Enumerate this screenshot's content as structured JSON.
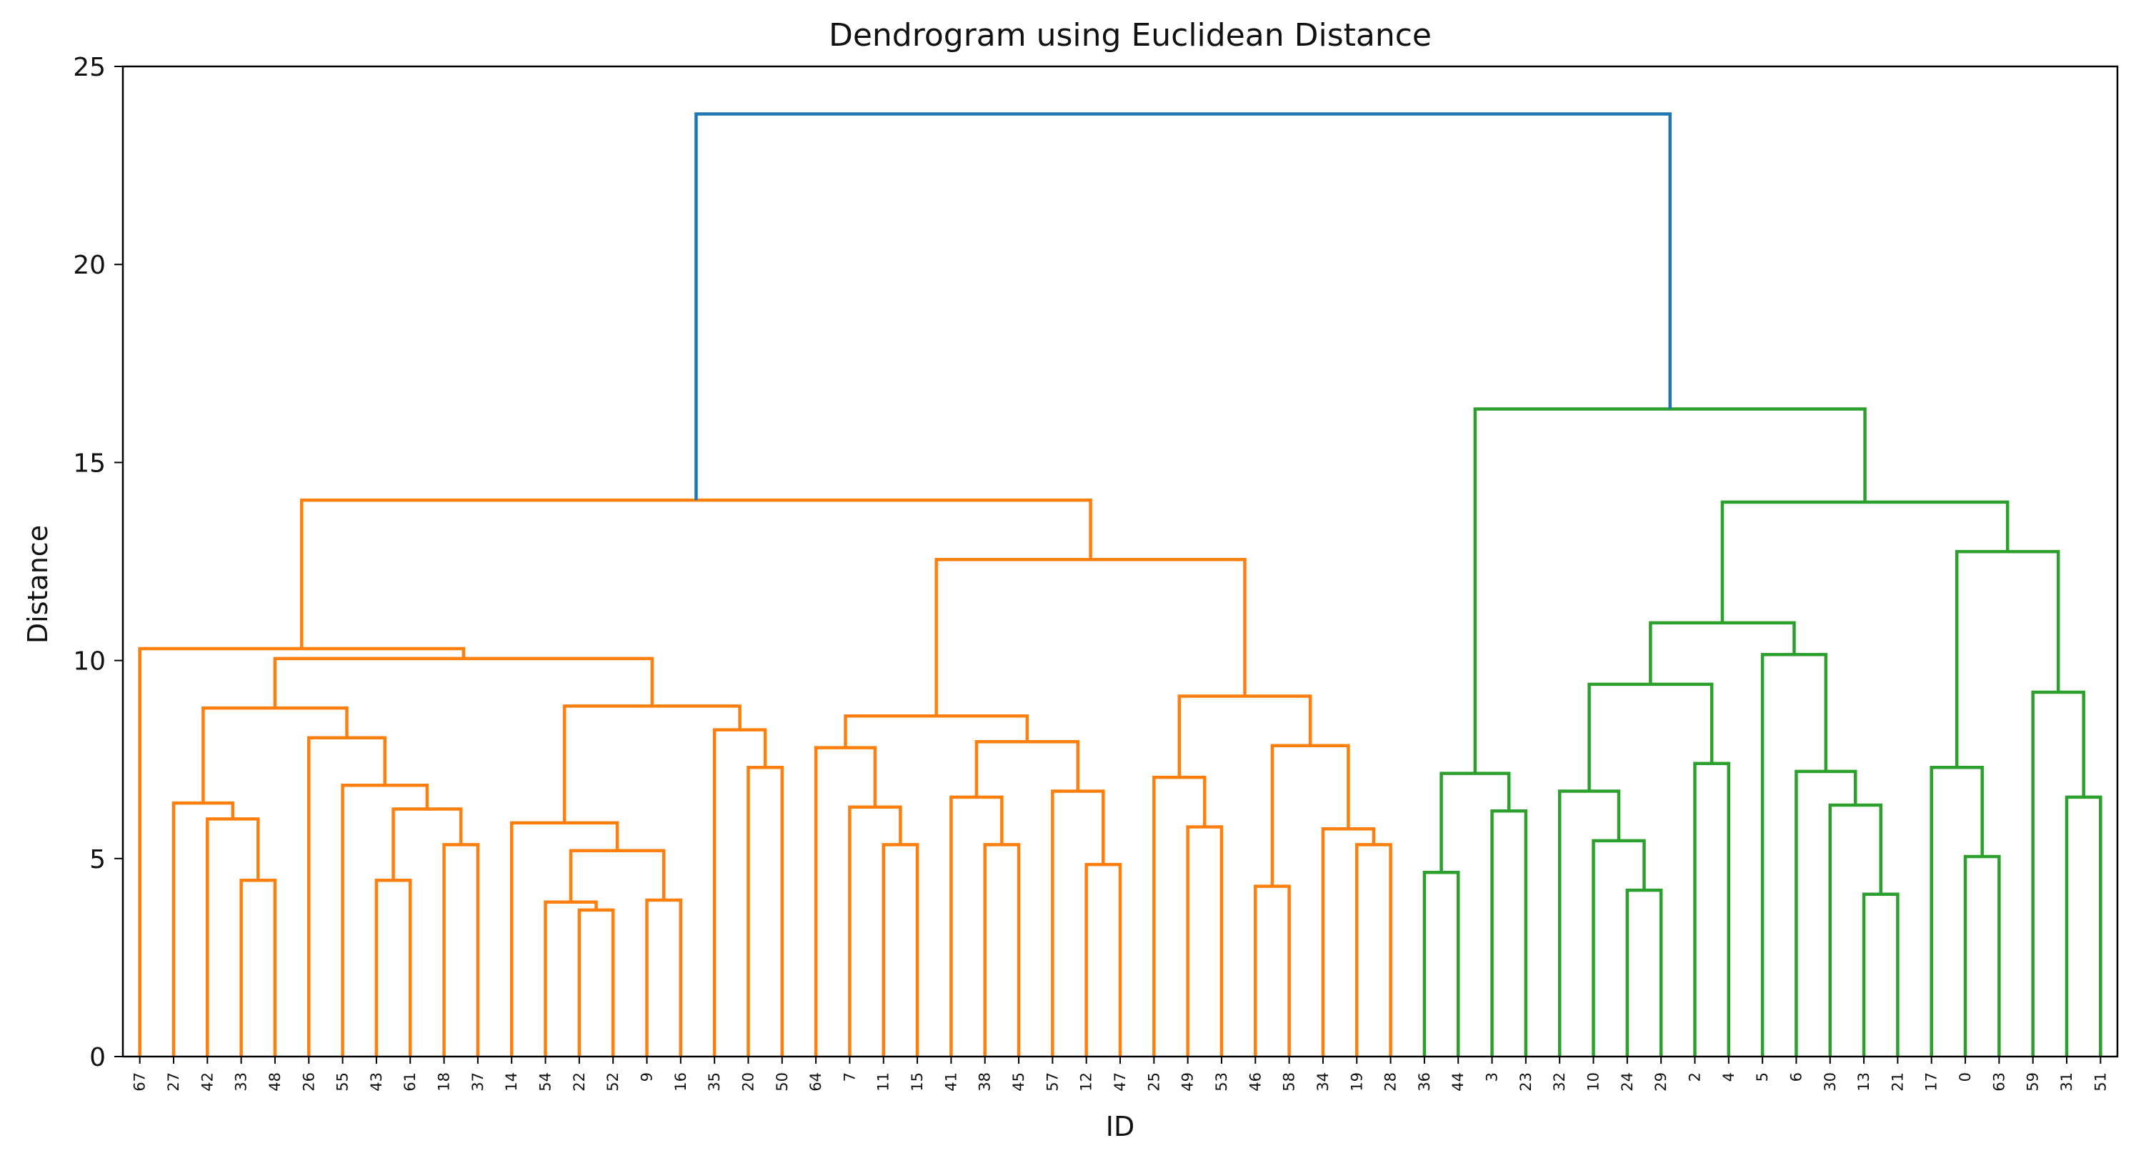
{
  "chart_data": {
    "type": "dendrogram",
    "title": "Dendrogram using Euclidean Distance",
    "xlabel": "ID",
    "ylabel": "Distance",
    "ylim": [
      0,
      25
    ],
    "yticks": [
      0,
      5,
      10,
      15,
      20,
      25
    ],
    "grid": false,
    "leaves": [
      "67",
      "27",
      "42",
      "33",
      "48",
      "26",
      "55",
      "43",
      "61",
      "18",
      "37",
      "14",
      "54",
      "22",
      "52",
      "9",
      "16",
      "35",
      "20",
      "50",
      "64",
      "7",
      "11",
      "15",
      "41",
      "38",
      "45",
      "57",
      "12",
      "47",
      "25",
      "49",
      "53",
      "46",
      "58",
      "34",
      "19",
      "28",
      "36",
      "44",
      "3",
      "23",
      "32",
      "10",
      "24",
      "29",
      "2",
      "4",
      "5",
      "6",
      "30",
      "13",
      "21",
      "17",
      "0",
      "63",
      "59",
      "31",
      "51"
    ],
    "colors": {
      "cluster_1": "#ff7f0e",
      "cluster_2": "#2ca02c",
      "root": "#1f77b4"
    },
    "merges": [
      {
        "a": {
          "l": 3
        },
        "b": {
          "l": 4
        },
        "h": 4.45,
        "c": "cluster_1"
      },
      {
        "a": {
          "l": 2
        },
        "b": {
          "m": 0
        },
        "h": 6.0,
        "c": "cluster_1"
      },
      {
        "a": {
          "l": 1
        },
        "b": {
          "m": 1
        },
        "h": 6.4,
        "c": "cluster_1"
      },
      {
        "a": {
          "l": 7
        },
        "b": {
          "l": 8
        },
        "h": 4.45,
        "c": "cluster_1"
      },
      {
        "a": {
          "l": 9
        },
        "b": {
          "l": 10
        },
        "h": 5.35,
        "c": "cluster_1"
      },
      {
        "a": {
          "m": 3
        },
        "b": {
          "m": 4
        },
        "h": 6.25,
        "c": "cluster_1"
      },
      {
        "a": {
          "l": 6
        },
        "b": {
          "m": 5
        },
        "h": 6.85,
        "c": "cluster_1"
      },
      {
        "a": {
          "l": 5
        },
        "b": {
          "m": 6
        },
        "h": 8.05,
        "c": "cluster_1"
      },
      {
        "a": {
          "m": 2
        },
        "b": {
          "m": 7
        },
        "h": 8.8,
        "c": "cluster_1"
      },
      {
        "a": {
          "l": 13
        },
        "b": {
          "l": 14
        },
        "h": 3.7,
        "c": "cluster_1"
      },
      {
        "a": {
          "l": 12
        },
        "b": {
          "m": 9
        },
        "h": 3.9,
        "c": "cluster_1"
      },
      {
        "a": {
          "l": 15
        },
        "b": {
          "l": 16
        },
        "h": 3.95,
        "c": "cluster_1"
      },
      {
        "a": {
          "m": 10
        },
        "b": {
          "m": 11
        },
        "h": 5.2,
        "c": "cluster_1"
      },
      {
        "a": {
          "l": 11
        },
        "b": {
          "m": 12
        },
        "h": 5.9,
        "c": "cluster_1"
      },
      {
        "a": {
          "l": 18
        },
        "b": {
          "l": 19
        },
        "h": 7.3,
        "c": "cluster_1"
      },
      {
        "a": {
          "l": 17
        },
        "b": {
          "m": 14
        },
        "h": 8.25,
        "c": "cluster_1"
      },
      {
        "a": {
          "m": 13
        },
        "b": {
          "m": 15
        },
        "h": 8.85,
        "c": "cluster_1"
      },
      {
        "a": {
          "m": 8
        },
        "b": {
          "m": 16
        },
        "h": 10.05,
        "c": "cluster_1"
      },
      {
        "a": {
          "l": 0
        },
        "b": {
          "m": 17
        },
        "h": 10.3,
        "c": "cluster_1"
      },
      {
        "a": {
          "l": 22
        },
        "b": {
          "l": 23
        },
        "h": 5.35,
        "c": "cluster_1"
      },
      {
        "a": {
          "l": 21
        },
        "b": {
          "m": 19
        },
        "h": 6.3,
        "c": "cluster_1"
      },
      {
        "a": {
          "l": 20
        },
        "b": {
          "m": 20
        },
        "h": 7.8,
        "c": "cluster_1"
      },
      {
        "a": {
          "l": 25
        },
        "b": {
          "l": 26
        },
        "h": 5.35,
        "c": "cluster_1"
      },
      {
        "a": {
          "l": 24
        },
        "b": {
          "m": 22
        },
        "h": 6.55,
        "c": "cluster_1"
      },
      {
        "a": {
          "l": 28
        },
        "b": {
          "l": 29
        },
        "h": 4.85,
        "c": "cluster_1"
      },
      {
        "a": {
          "l": 27
        },
        "b": {
          "m": 24
        },
        "h": 6.7,
        "c": "cluster_1"
      },
      {
        "a": {
          "m": 23
        },
        "b": {
          "m": 25
        },
        "h": 7.95,
        "c": "cluster_1"
      },
      {
        "a": {
          "m": 21
        },
        "b": {
          "m": 26
        },
        "h": 8.6,
        "c": "cluster_1"
      },
      {
        "a": {
          "l": 31
        },
        "b": {
          "l": 32
        },
        "h": 5.8,
        "c": "cluster_1"
      },
      {
        "a": {
          "l": 30
        },
        "b": {
          "m": 28
        },
        "h": 7.05,
        "c": "cluster_1"
      },
      {
        "a": {
          "l": 33
        },
        "b": {
          "l": 34
        },
        "h": 4.3,
        "c": "cluster_1"
      },
      {
        "a": {
          "l": 36
        },
        "b": {
          "l": 37
        },
        "h": 5.35,
        "c": "cluster_1"
      },
      {
        "a": {
          "l": 35
        },
        "b": {
          "m": 31
        },
        "h": 5.75,
        "c": "cluster_1"
      },
      {
        "a": {
          "m": 30
        },
        "b": {
          "m": 32
        },
        "h": 7.85,
        "c": "cluster_1"
      },
      {
        "a": {
          "m": 29
        },
        "b": {
          "m": 33
        },
        "h": 9.1,
        "c": "cluster_1"
      },
      {
        "a": {
          "m": 27
        },
        "b": {
          "m": 34
        },
        "h": 12.55,
        "c": "cluster_1"
      },
      {
        "a": {
          "m": 18
        },
        "b": {
          "m": 35
        },
        "h": 14.05,
        "c": "cluster_1"
      },
      {
        "a": {
          "l": 38
        },
        "b": {
          "l": 39
        },
        "h": 4.65,
        "c": "cluster_2"
      },
      {
        "a": {
          "l": 40
        },
        "b": {
          "l": 41
        },
        "h": 6.2,
        "c": "cluster_2"
      },
      {
        "a": {
          "m": 37
        },
        "b": {
          "m": 38
        },
        "h": 7.15,
        "c": "cluster_2"
      },
      {
        "a": {
          "l": 44
        },
        "b": {
          "l": 45
        },
        "h": 4.2,
        "c": "cluster_2"
      },
      {
        "a": {
          "l": 43
        },
        "b": {
          "m": 40
        },
        "h": 5.45,
        "c": "cluster_2"
      },
      {
        "a": {
          "l": 42
        },
        "b": {
          "m": 41
        },
        "h": 6.7,
        "c": "cluster_2"
      },
      {
        "a": {
          "l": 46
        },
        "b": {
          "l": 47
        },
        "h": 7.4,
        "c": "cluster_2"
      },
      {
        "a": {
          "m": 42
        },
        "b": {
          "m": 43
        },
        "h": 9.4,
        "c": "cluster_2"
      },
      {
        "a": {
          "l": 51
        },
        "b": {
          "l": 52
        },
        "h": 4.1,
        "c": "cluster_2"
      },
      {
        "a": {
          "l": 50
        },
        "b": {
          "m": 45
        },
        "h": 6.35,
        "c": "cluster_2"
      },
      {
        "a": {
          "l": 49
        },
        "b": {
          "m": 46
        },
        "h": 7.2,
        "c": "cluster_2"
      },
      {
        "a": {
          "l": 48
        },
        "b": {
          "m": 47
        },
        "h": 10.15,
        "c": "cluster_2"
      },
      {
        "a": {
          "m": 44
        },
        "b": {
          "m": 48
        },
        "h": 10.95,
        "c": "cluster_2"
      },
      {
        "a": {
          "l": 54
        },
        "b": {
          "l": 55
        },
        "h": 5.05,
        "c": "cluster_2"
      },
      {
        "a": {
          "l": 53
        },
        "b": {
          "m": 50
        },
        "h": 7.3,
        "c": "cluster_2"
      },
      {
        "a": {
          "l": 57
        },
        "b": {
          "l": 58
        },
        "h": 6.55,
        "c": "cluster_2"
      },
      {
        "a": {
          "l": 56
        },
        "b": {
          "m": 52
        },
        "h": 9.2,
        "c": "cluster_2"
      },
      {
        "a": {
          "m": 51
        },
        "b": {
          "m": 53
        },
        "h": 12.75,
        "c": "cluster_2"
      },
      {
        "a": {
          "m": 49
        },
        "b": {
          "m": 54
        },
        "h": 14.0,
        "c": "cluster_2"
      },
      {
        "a": {
          "m": 39
        },
        "b": {
          "m": 55
        },
        "h": 16.35,
        "c": "cluster_2"
      },
      {
        "a": {
          "m": 36
        },
        "b": {
          "m": 56
        },
        "h": 23.8,
        "c": "root"
      }
    ]
  }
}
